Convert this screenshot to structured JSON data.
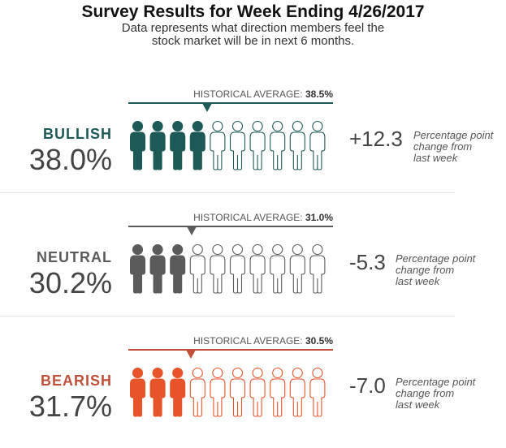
{
  "title": "Survey Results for Week Ending 4/26/2017",
  "subtitle_line1": "Data represents what direction members feel the",
  "subtitle_line2": "stock market will be in next 6 months.",
  "chart_data": {
    "type": "pictograph",
    "icons_per_row": 10,
    "categories": [
      {
        "name": "BULLISH",
        "key": "bullish",
        "percent": 38.0,
        "percent_label": "38.0%",
        "historical_average": 38.5,
        "historical_label": "HISTORICAL AVERAGE:",
        "historical_value_label": "38.5%",
        "change": 12.3,
        "change_label": "+12.3",
        "filled_icons": 4,
        "color": "#1d5a57"
      },
      {
        "name": "NEUTRAL",
        "key": "neutral",
        "percent": 30.2,
        "percent_label": "30.2%",
        "historical_average": 31.0,
        "historical_label": "HISTORICAL AVERAGE:",
        "historical_value_label": "31.0%",
        "change": -5.3,
        "change_label": "-5.3",
        "filled_icons": 3,
        "color": "#5b5b5b"
      },
      {
        "name": "BEARISH",
        "key": "bearish",
        "percent": 31.7,
        "percent_label": "31.7%",
        "historical_average": 30.5,
        "historical_label": "HISTORICAL AVERAGE:",
        "historical_value_label": "30.5%",
        "change": -7.0,
        "change_label": "-7.0",
        "filled_icons": 3,
        "color": "#e8542a"
      }
    ],
    "note_line1": "Percentage point",
    "note_line2": "change from",
    "note_line3": "last week",
    "line_colors": {
      "bullish": "#1d5a57",
      "neutral": "#5b5b5b",
      "bearish": "#c0503a"
    },
    "label_colors": {
      "bullish": "#1d5a57",
      "neutral": "#5b5b5b",
      "bearish": "#c0503a"
    }
  }
}
